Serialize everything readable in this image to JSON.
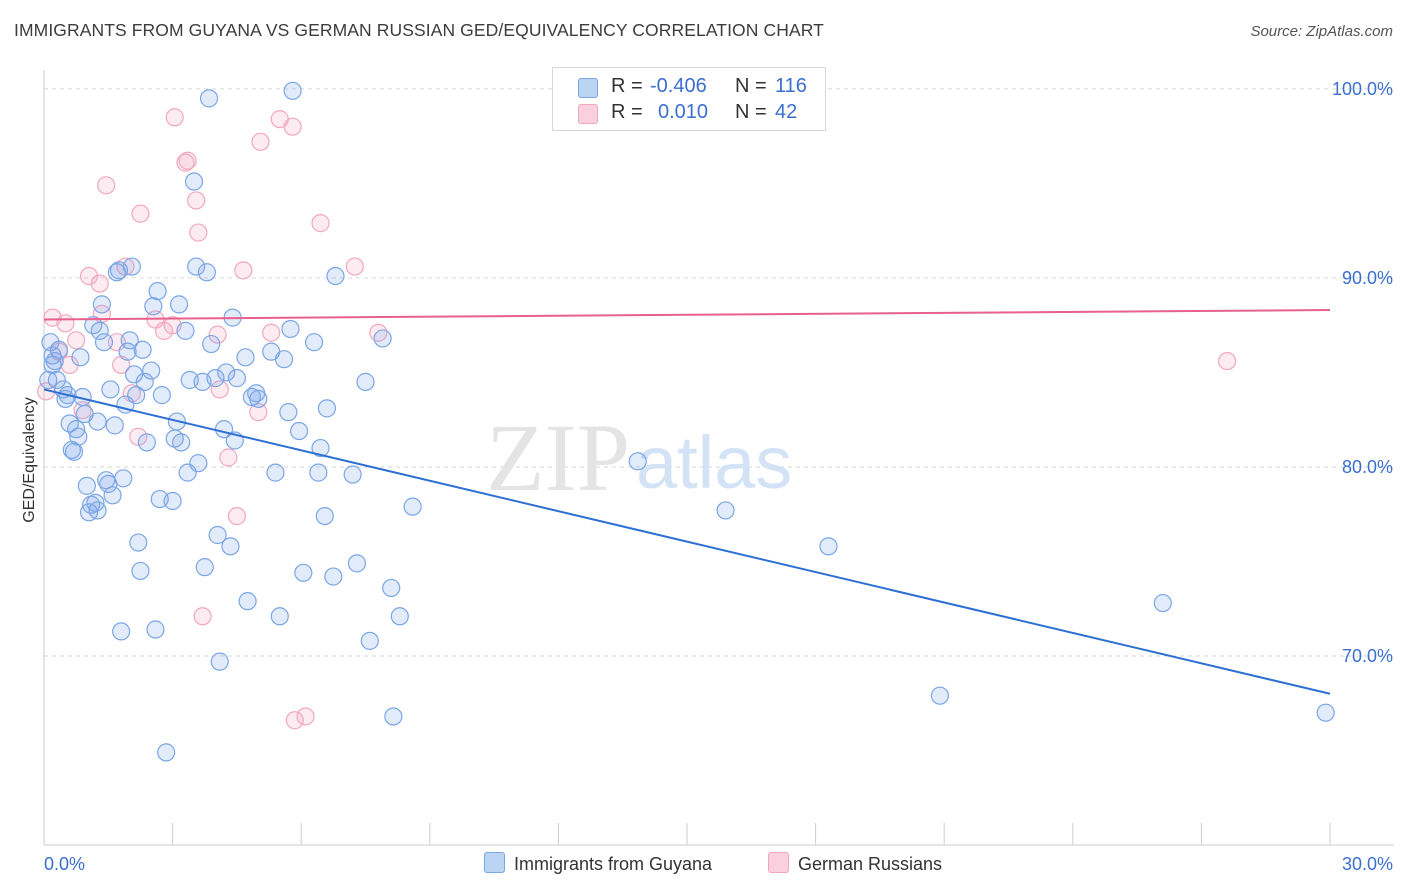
{
  "title": "IMMIGRANTS FROM GUYANA VS GERMAN RUSSIAN GED/EQUIVALENCY CORRELATION CHART",
  "source": "Source: ZipAtlas.com",
  "watermark": {
    "zip": "ZIP",
    "atlas": "atlas"
  },
  "legend": {
    "rows": [
      {
        "r_label": "R =",
        "r_value": "-0.406",
        "n_label": "N =",
        "n_value": "116"
      },
      {
        "r_label": "R =",
        "r_value": "0.010",
        "n_label": "N =",
        "n_value": "42"
      }
    ]
  },
  "chart_data": {
    "type": "scatter",
    "title": "IMMIGRANTS FROM GUYANA VS GERMAN RUSSIAN GED/EQUIVALENCY CORRELATION CHART",
    "xlabel": "",
    "ylabel": "GED/Equivalency",
    "xlim": [
      0,
      30
    ],
    "ylim": [
      60,
      101
    ],
    "x_tick_labels": [
      "0.0%",
      "30.0%"
    ],
    "y_ticks": [
      70,
      80,
      90,
      100
    ],
    "y_tick_labels": [
      "70.0%",
      "80.0%",
      "90.0%",
      "100.0%"
    ],
    "grid": true,
    "legend_position": "top-center",
    "colors": {
      "blue": "#7aa6e6",
      "blue_line": "#2d6fd2",
      "pink": "#f2a7bf",
      "pink_line": "#e8608c",
      "tick_text": "#3a6fd0"
    },
    "series": [
      {
        "name": "Immigrants from Guyana",
        "color": "blue",
        "trend": {
          "x": [
            0,
            30
          ],
          "y": [
            84.1,
            68.0
          ]
        },
        "points": [
          [
            0.1,
            84.6
          ],
          [
            0.15,
            86.6
          ],
          [
            0.2,
            85.9
          ],
          [
            0.2,
            85.4
          ],
          [
            0.25,
            85.6
          ],
          [
            0.3,
            84.6
          ],
          [
            0.35,
            86.2
          ],
          [
            0.45,
            84.1
          ],
          [
            0.5,
            83.6
          ],
          [
            0.55,
            83.8
          ],
          [
            0.6,
            82.3
          ],
          [
            0.65,
            80.9
          ],
          [
            0.7,
            80.8
          ],
          [
            0.75,
            82.0
          ],
          [
            0.8,
            81.6
          ],
          [
            0.85,
            85.8
          ],
          [
            0.9,
            83.7
          ],
          [
            0.95,
            82.8
          ],
          [
            1.0,
            79.0
          ],
          [
            1.05,
            77.6
          ],
          [
            1.1,
            78.0
          ],
          [
            1.15,
            87.5
          ],
          [
            1.2,
            78.1
          ],
          [
            1.25,
            77.7
          ],
          [
            1.3,
            87.2
          ],
          [
            1.35,
            88.6
          ],
          [
            1.4,
            86.6
          ],
          [
            1.45,
            79.3
          ],
          [
            1.5,
            79.1
          ],
          [
            1.55,
            84.1
          ],
          [
            1.6,
            78.5
          ],
          [
            1.65,
            82.2
          ],
          [
            1.7,
            90.3
          ],
          [
            1.75,
            90.4
          ],
          [
            1.8,
            71.3
          ],
          [
            1.85,
            79.4
          ],
          [
            1.9,
            83.3
          ],
          [
            1.95,
            86.1
          ],
          [
            2.0,
            86.7
          ],
          [
            2.05,
            90.6
          ],
          [
            2.1,
            84.9
          ],
          [
            2.15,
            83.8
          ],
          [
            2.2,
            76.0
          ],
          [
            2.25,
            74.5
          ],
          [
            2.3,
            86.2
          ],
          [
            2.4,
            81.3
          ],
          [
            2.5,
            85.1
          ],
          [
            2.55,
            88.5
          ],
          [
            2.6,
            71.4
          ],
          [
            2.65,
            89.3
          ],
          [
            2.7,
            78.3
          ],
          [
            2.75,
            83.8
          ],
          [
            2.85,
            64.9
          ],
          [
            3.0,
            78.2
          ],
          [
            3.05,
            81.5
          ],
          [
            3.1,
            82.4
          ],
          [
            3.15,
            88.6
          ],
          [
            3.2,
            81.3
          ],
          [
            3.3,
            87.2
          ],
          [
            3.35,
            79.7
          ],
          [
            3.4,
            84.6
          ],
          [
            3.5,
            95.1
          ],
          [
            3.55,
            90.6
          ],
          [
            3.6,
            80.2
          ],
          [
            3.7,
            84.5
          ],
          [
            3.75,
            74.7
          ],
          [
            3.8,
            90.3
          ],
          [
            3.85,
            99.5
          ],
          [
            3.9,
            86.5
          ],
          [
            4.0,
            84.7
          ],
          [
            4.05,
            76.4
          ],
          [
            4.1,
            69.7
          ],
          [
            4.2,
            82.0
          ],
          [
            4.25,
            85.0
          ],
          [
            4.35,
            75.8
          ],
          [
            4.4,
            87.9
          ],
          [
            4.45,
            81.4
          ],
          [
            4.7,
            85.8
          ],
          [
            4.75,
            72.9
          ],
          [
            4.85,
            83.7
          ],
          [
            4.95,
            83.9
          ],
          [
            5.0,
            83.6
          ],
          [
            5.3,
            86.1
          ],
          [
            5.4,
            79.7
          ],
          [
            5.5,
            72.1
          ],
          [
            5.6,
            85.7
          ],
          [
            5.7,
            82.9
          ],
          [
            5.75,
            87.3
          ],
          [
            5.8,
            99.9
          ],
          [
            5.95,
            81.9
          ],
          [
            6.05,
            74.4
          ],
          [
            6.3,
            86.6
          ],
          [
            6.4,
            79.7
          ],
          [
            6.45,
            81.0
          ],
          [
            6.55,
            77.4
          ],
          [
            6.6,
            83.1
          ],
          [
            6.75,
            74.2
          ],
          [
            6.8,
            90.1
          ],
          [
            7.2,
            79.6
          ],
          [
            7.3,
            74.9
          ],
          [
            7.5,
            84.5
          ],
          [
            7.6,
            70.8
          ],
          [
            7.9,
            86.8
          ],
          [
            8.1,
            73.6
          ],
          [
            8.15,
            66.8
          ],
          [
            8.3,
            72.1
          ],
          [
            8.6,
            77.9
          ],
          [
            13.85,
            80.3
          ],
          [
            15.9,
            77.7
          ],
          [
            18.3,
            75.8
          ],
          [
            20.9,
            67.9
          ],
          [
            26.1,
            72.8
          ],
          [
            29.9,
            67.0
          ],
          [
            4.5,
            84.7
          ],
          [
            1.25,
            82.4
          ],
          [
            2.35,
            84.5
          ]
        ]
      },
      {
        "name": "German Russians",
        "color": "pink",
        "trend": {
          "x": [
            0,
            30
          ],
          "y": [
            87.8,
            88.3
          ]
        },
        "points": [
          [
            0.05,
            84.0
          ],
          [
            0.2,
            87.9
          ],
          [
            0.35,
            86.1
          ],
          [
            0.5,
            87.6
          ],
          [
            0.6,
            85.4
          ],
          [
            0.75,
            86.7
          ],
          [
            0.9,
            83.0
          ],
          [
            1.05,
            90.1
          ],
          [
            1.3,
            89.7
          ],
          [
            1.35,
            88.1
          ],
          [
            1.45,
            94.9
          ],
          [
            1.7,
            86.6
          ],
          [
            1.8,
            85.4
          ],
          [
            1.9,
            90.6
          ],
          [
            2.05,
            83.9
          ],
          [
            2.2,
            81.6
          ],
          [
            2.25,
            93.4
          ],
          [
            2.6,
            87.8
          ],
          [
            2.8,
            87.2
          ],
          [
            3.0,
            87.5
          ],
          [
            3.05,
            98.5
          ],
          [
            3.3,
            96.1
          ],
          [
            3.35,
            96.2
          ],
          [
            3.55,
            94.1
          ],
          [
            3.6,
            92.4
          ],
          [
            3.7,
            72.1
          ],
          [
            4.05,
            87.0
          ],
          [
            4.1,
            84.1
          ],
          [
            4.3,
            80.5
          ],
          [
            4.5,
            77.4
          ],
          [
            4.65,
            90.4
          ],
          [
            5.0,
            82.9
          ],
          [
            5.05,
            97.2
          ],
          [
            5.3,
            87.1
          ],
          [
            5.5,
            98.4
          ],
          [
            5.8,
            98.0
          ],
          [
            5.85,
            66.6
          ],
          [
            6.1,
            66.8
          ],
          [
            6.45,
            92.9
          ],
          [
            7.25,
            90.6
          ],
          [
            7.8,
            87.1
          ],
          [
            27.6,
            85.6
          ]
        ]
      }
    ]
  },
  "bottom_legend": [
    {
      "label": "Immigrants from Guyana"
    },
    {
      "label": "German Russians"
    }
  ]
}
